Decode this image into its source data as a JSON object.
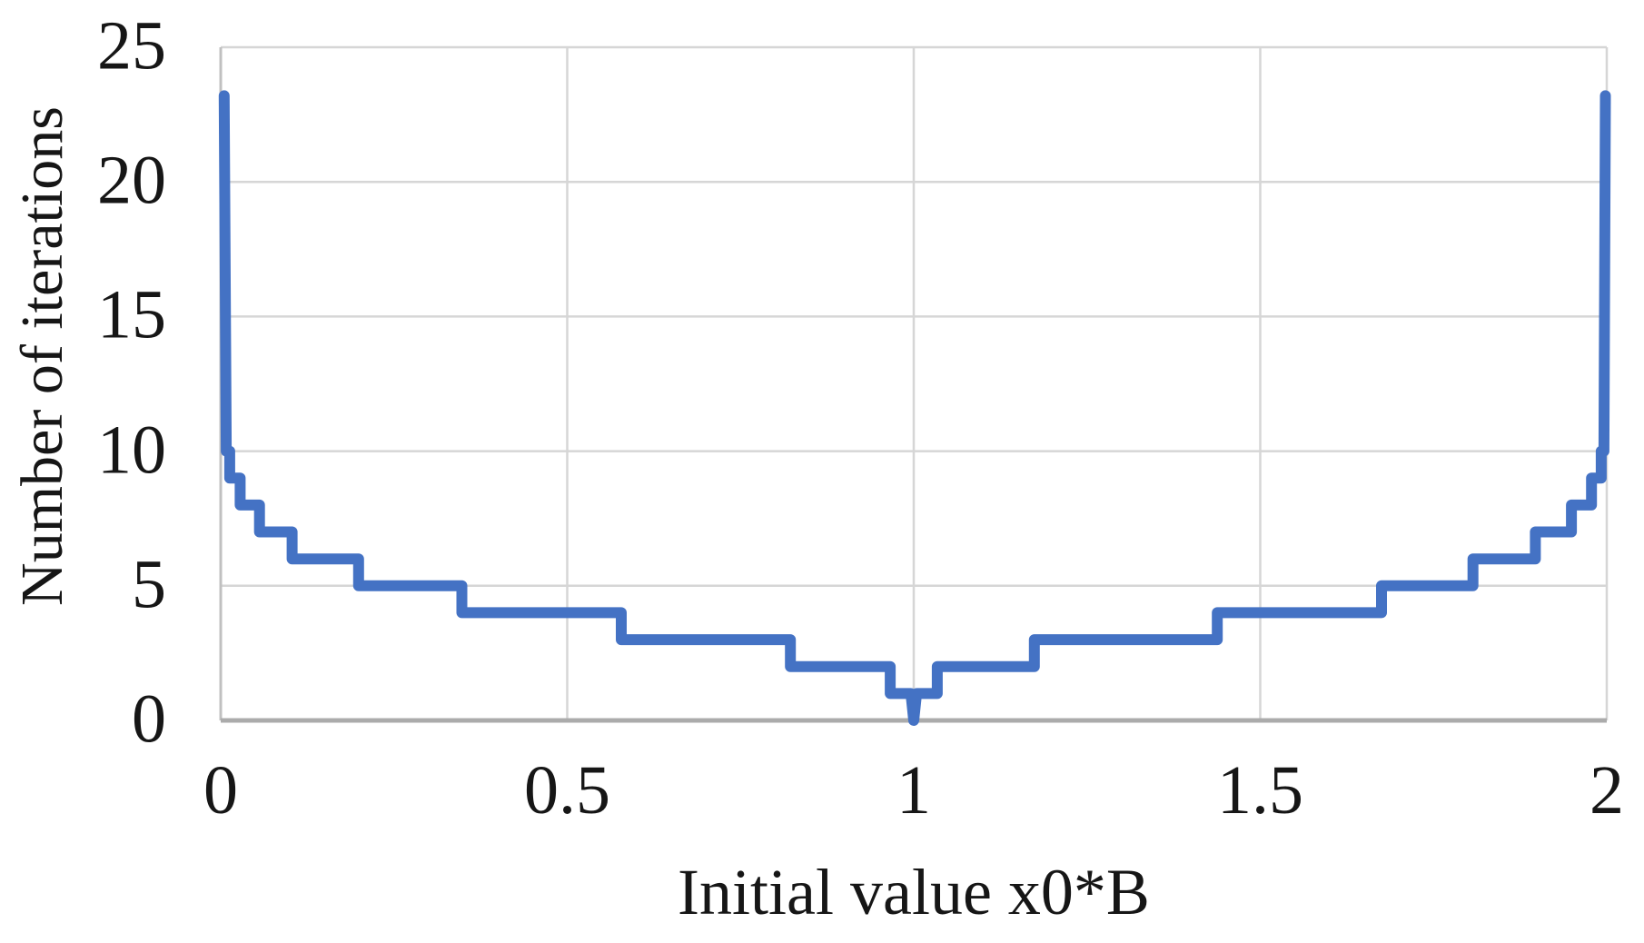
{
  "figure": {
    "background": "#FFFFFF"
  },
  "chart_data": {
    "type": "line",
    "title": "",
    "xlabel": "Initial value x0*B",
    "ylabel": "Number of iterations",
    "xlim": [
      0,
      2
    ],
    "ylim": [
      0,
      25
    ],
    "grid": true,
    "legend": "none",
    "line_style": "step",
    "colors": {
      "line": "#4472C4",
      "grid": "#D6D6D6",
      "axis": "#C0C0C0",
      "axis_bottom": "#ABABAB",
      "text": "#161616",
      "background": "#FFFFFF"
    },
    "xticks": [
      {
        "v": 0,
        "label": "0"
      },
      {
        "v": 0.5,
        "label": "0.5"
      },
      {
        "v": 1,
        "label": "1"
      },
      {
        "v": 1.5,
        "label": "1.5"
      },
      {
        "v": 2,
        "label": "2"
      }
    ],
    "yticks": [
      {
        "v": 0,
        "label": "0"
      },
      {
        "v": 5,
        "label": "5"
      },
      {
        "v": 10,
        "label": "10"
      },
      {
        "v": 15,
        "label": "15"
      },
      {
        "v": 20,
        "label": "20"
      },
      {
        "v": 25,
        "label": "25"
      }
    ],
    "series": [
      {
        "name": "Number of iterations",
        "step_points": [
          [
            0.005,
            23.2
          ],
          [
            0.008,
            10
          ],
          [
            0.013,
            10
          ],
          [
            0.013,
            9
          ],
          [
            0.028,
            9
          ],
          [
            0.028,
            8
          ],
          [
            0.056,
            8
          ],
          [
            0.056,
            7
          ],
          [
            0.103,
            7
          ],
          [
            0.103,
            6
          ],
          [
            0.199,
            6
          ],
          [
            0.199,
            5
          ],
          [
            0.348,
            5
          ],
          [
            0.348,
            4
          ],
          [
            0.578,
            4
          ],
          [
            0.578,
            3
          ],
          [
            0.822,
            3
          ],
          [
            0.822,
            2
          ],
          [
            0.966,
            2
          ],
          [
            0.966,
            1
          ],
          [
            0.996,
            1
          ],
          [
            1.0,
            0
          ],
          [
            1.004,
            1
          ],
          [
            1.034,
            1
          ],
          [
            1.034,
            2
          ],
          [
            1.174,
            2
          ],
          [
            1.174,
            3
          ],
          [
            1.438,
            3
          ],
          [
            1.438,
            4
          ],
          [
            1.675,
            4
          ],
          [
            1.675,
            5
          ],
          [
            1.807,
            5
          ],
          [
            1.807,
            6
          ],
          [
            1.897,
            6
          ],
          [
            1.897,
            7
          ],
          [
            1.949,
            7
          ],
          [
            1.949,
            8
          ],
          [
            1.978,
            8
          ],
          [
            1.978,
            9
          ],
          [
            1.992,
            9
          ],
          [
            1.992,
            10
          ],
          [
            1.996,
            10
          ],
          [
            1.998,
            23.2
          ]
        ]
      }
    ]
  }
}
